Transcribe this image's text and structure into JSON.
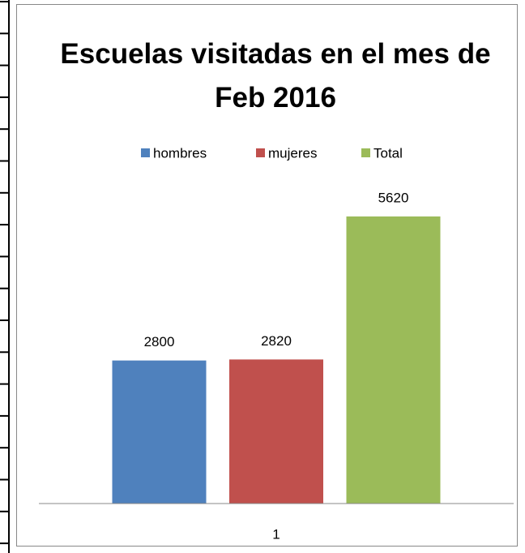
{
  "chart_data": {
    "type": "bar",
    "title": "Escuelas visitadas en el mes de Feb 2016",
    "categories": [
      "1"
    ],
    "series": [
      {
        "name": "hombres",
        "color": "#4f81bd",
        "values": [
          2800
        ]
      },
      {
        "name": "mujeres",
        "color": "#c0504d",
        "values": [
          2820
        ]
      },
      {
        "name": "Total",
        "color": "#9bbb59",
        "values": [
          5620
        ]
      }
    ],
    "ylim": [
      0,
      6000
    ],
    "legend": "top"
  }
}
